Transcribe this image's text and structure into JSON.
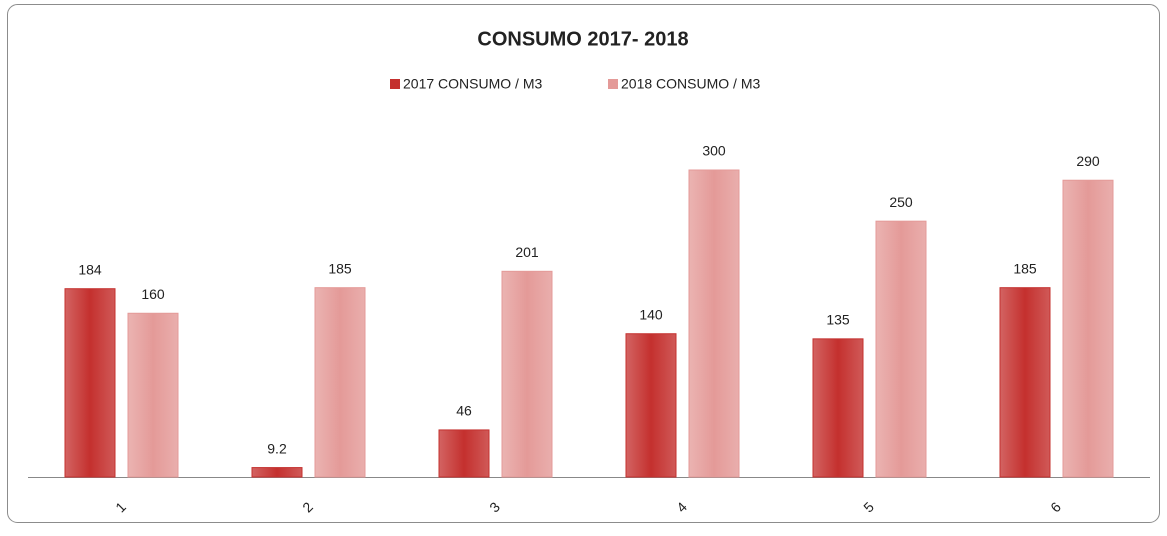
{
  "chart_data": {
    "type": "bar",
    "title": "CONSUMO 2017- 2018",
    "categories": [
      "1",
      "2",
      "3",
      "4",
      "5",
      "6"
    ],
    "series": [
      {
        "name": "2017 CONSUMO / M3",
        "color": "#c4302e",
        "values": [
          184,
          9.2,
          46,
          140,
          135,
          185
        ]
      },
      {
        "name": "2018 CONSUMO / M3",
        "color": "#e49a98",
        "values": [
          160,
          185,
          201,
          300,
          250,
          290
        ]
      }
    ],
    "legend": "top"
  }
}
